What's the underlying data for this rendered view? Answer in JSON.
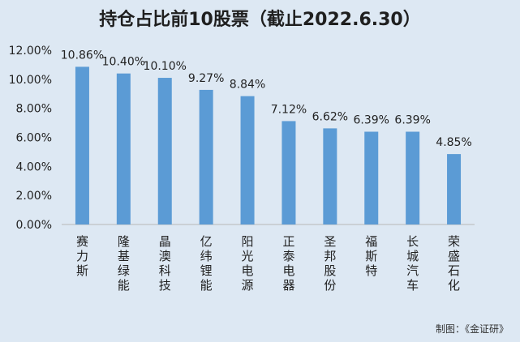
{
  "credit": "制图：《金证研》",
  "chart_data": {
    "type": "bar",
    "title": "持仓占比前10股票（截止2022.6.30）",
    "categories": [
      "赛力斯",
      "隆基绿能",
      "晶澳科技",
      "亿纬锂能",
      "阳光电源",
      "正泰电器",
      "圣邦股份",
      "福斯特",
      "长城汽车",
      "荣盛石化"
    ],
    "values": [
      10.86,
      10.4,
      10.1,
      9.27,
      8.84,
      7.12,
      6.62,
      6.39,
      6.39,
      4.85
    ],
    "data_labels": [
      "10.86%",
      "10.40%",
      "10.10%",
      "9.27%",
      "8.84%",
      "7.12%",
      "6.62%",
      "6.39%",
      "6.39%",
      "4.85%"
    ],
    "ylim": [
      0,
      12
    ],
    "yticks": [
      0,
      2,
      4,
      6,
      8,
      10,
      12
    ],
    "ytick_labels": [
      "0.00%",
      "2.00%",
      "4.00%",
      "6.00%",
      "8.00%",
      "10.00%",
      "12.00%"
    ],
    "bar_color": "#5b9bd5",
    "grid": false,
    "legend": false,
    "xlabel": "",
    "ylabel": ""
  }
}
